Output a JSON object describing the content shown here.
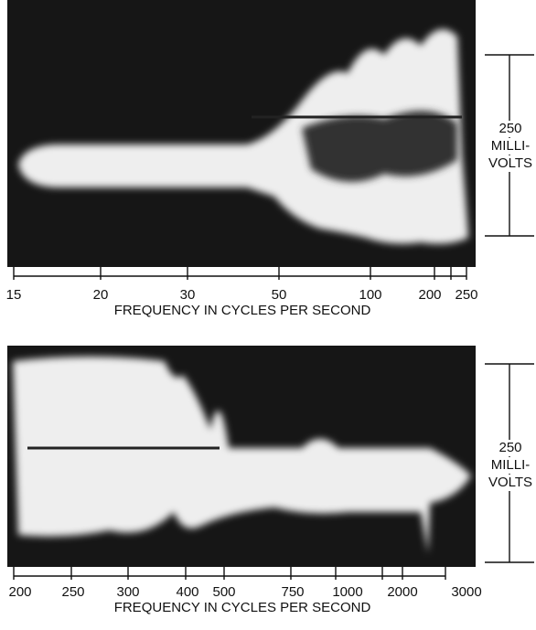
{
  "panels": [
    {
      "tick_labels": [
        "15",
        "20",
        "30",
        "50",
        "100",
        "200",
        "250"
      ],
      "axis_label": "FREQUENCY IN CYCLES PER SECOND",
      "scale_label": [
        "250",
        "MILLI-",
        "VOLTS"
      ]
    },
    {
      "tick_labels": [
        "200",
        "250",
        "300",
        "400",
        "500",
        "750",
        "1000",
        "2000",
        "3000"
      ],
      "axis_label": "FREQUENCY IN CYCLES PER SECOND",
      "scale_label": [
        "250",
        "MILLI-",
        "VOLTS"
      ]
    }
  ]
}
